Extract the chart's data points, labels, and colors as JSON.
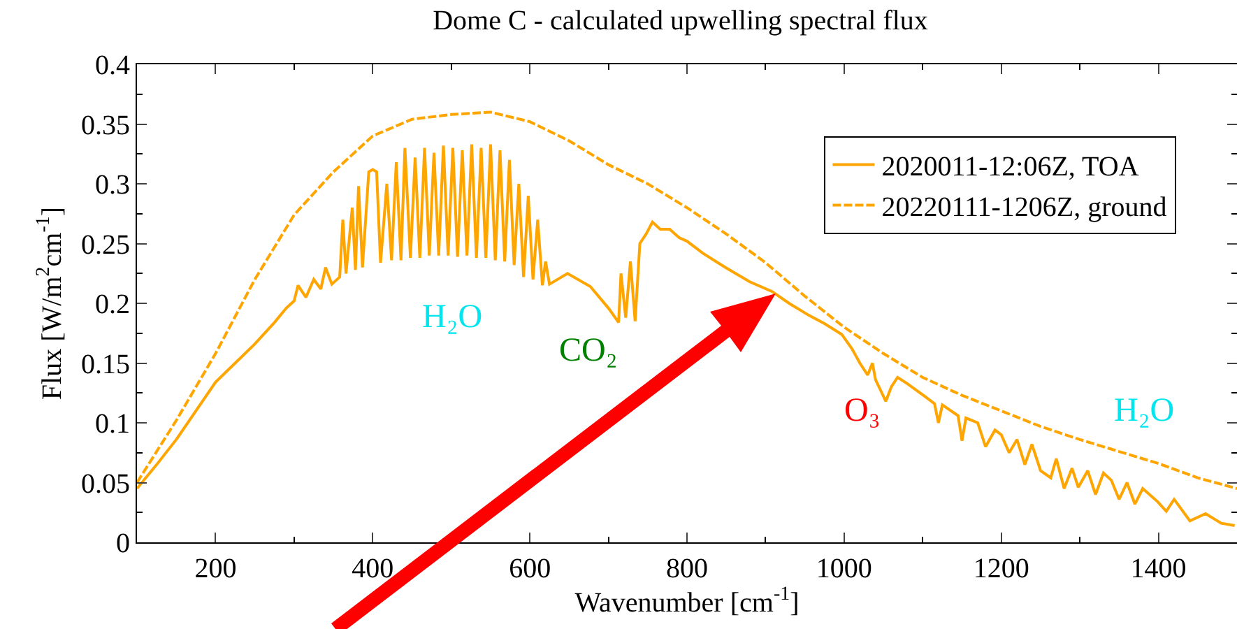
{
  "chart_data": {
    "type": "line",
    "title": "Dome C - calculated upwelling spectral flux",
    "xlabel": "Wavenumber [cm$^{-1}$]",
    "ylabel": "Flux [W/m$^{2}$cm$^{-1}$]",
    "xlim": [
      100,
      1500
    ],
    "xticks": [
      200,
      400,
      600,
      800,
      1000,
      1200,
      1400
    ],
    "ylim": [
      0,
      0.4
    ],
    "yticks": [
      0,
      0.05,
      0.1,
      0.15,
      0.2,
      0.25,
      0.3,
      0.35,
      0.4
    ],
    "grid": false,
    "legend": "top right",
    "marker": "none",
    "series": [
      {
        "name": "2020011-12:06Z, TOA",
        "color": "#ffa500",
        "line_style": "solid",
        "x": [
          100,
          125,
          150,
          175,
          200,
          225,
          250,
          275,
          290,
          300,
          305,
          315,
          325,
          334,
          340,
          348,
          358,
          362,
          366,
          374,
          378,
          382,
          387,
          395,
          400,
          405,
          410,
          418,
          424,
          430,
          436,
          441,
          448,
          454,
          460,
          466,
          472,
          478,
          484,
          490,
          496,
          502,
          508,
          514,
          520,
          526,
          532,
          538,
          544,
          550,
          556,
          562,
          568,
          574,
          580,
          586,
          592,
          598,
          604,
          610,
          616,
          620,
          625,
          648,
          677,
          700,
          713,
          716,
          722,
          728,
          734,
          740,
          748,
          756,
          766,
          778,
          790,
          800,
          820,
          849,
          880,
          908,
          930,
          955,
          975,
          997,
          1010,
          1020,
          1030,
          1036,
          1040,
          1048,
          1053,
          1060,
          1068,
          1080,
          1103,
          1115,
          1120,
          1125,
          1145,
          1150,
          1155,
          1170,
          1180,
          1192,
          1200,
          1210,
          1220,
          1230,
          1239,
          1250,
          1263,
          1270,
          1280,
          1290,
          1298,
          1310,
          1320,
          1330,
          1340,
          1350,
          1360,
          1370,
          1380,
          1399,
          1410,
          1420,
          1440,
          1460,
          1480,
          1497
        ],
        "values": [
          0.045,
          0.065,
          0.086,
          0.11,
          0.134,
          0.15,
          0.166,
          0.184,
          0.196,
          0.202,
          0.215,
          0.205,
          0.22,
          0.212,
          0.23,
          0.216,
          0.222,
          0.27,
          0.225,
          0.28,
          0.228,
          0.298,
          0.23,
          0.31,
          0.312,
          0.31,
          0.234,
          0.3,
          0.236,
          0.318,
          0.236,
          0.33,
          0.238,
          0.322,
          0.238,
          0.33,
          0.24,
          0.326,
          0.24,
          0.332,
          0.24,
          0.33,
          0.239,
          0.328,
          0.24,
          0.333,
          0.238,
          0.33,
          0.238,
          0.333,
          0.236,
          0.328,
          0.235,
          0.32,
          0.232,
          0.3,
          0.222,
          0.29,
          0.22,
          0.27,
          0.215,
          0.235,
          0.216,
          0.225,
          0.214,
          0.196,
          0.184,
          0.225,
          0.188,
          0.235,
          0.185,
          0.25,
          0.258,
          0.268,
          0.262,
          0.262,
          0.255,
          0.252,
          0.242,
          0.23,
          0.218,
          0.21,
          0.2,
          0.19,
          0.183,
          0.174,
          0.162,
          0.15,
          0.14,
          0.15,
          0.136,
          0.125,
          0.118,
          0.13,
          0.138,
          0.133,
          0.122,
          0.116,
          0.1,
          0.115,
          0.106,
          0.085,
          0.104,
          0.1,
          0.08,
          0.094,
          0.09,
          0.075,
          0.086,
          0.065,
          0.082,
          0.06,
          0.054,
          0.07,
          0.045,
          0.062,
          0.046,
          0.06,
          0.04,
          0.058,
          0.052,
          0.036,
          0.05,
          0.032,
          0.045,
          0.034,
          0.026,
          0.036,
          0.018,
          0.024,
          0.016,
          0.014
        ]
      },
      {
        "name": "20220111-1206Z, ground",
        "color": "#ffa500",
        "line_style": "dashed",
        "x": [
          100,
          150,
          200,
          250,
          300,
          350,
          400,
          450,
          500,
          550,
          600,
          650,
          700,
          750,
          800,
          850,
          900,
          950,
          1000,
          1050,
          1100,
          1150,
          1200,
          1250,
          1300,
          1350,
          1400,
          1450,
          1500
        ],
        "values": [
          0.05,
          0.102,
          0.158,
          0.22,
          0.274,
          0.31,
          0.34,
          0.354,
          0.358,
          0.36,
          0.352,
          0.336,
          0.316,
          0.3,
          0.28,
          0.258,
          0.234,
          0.206,
          0.18,
          0.158,
          0.138,
          0.123,
          0.11,
          0.097,
          0.086,
          0.076,
          0.066,
          0.054,
          0.045
        ]
      }
    ],
    "annotations": [
      "H₂O",
      "CO₂",
      "O₃",
      "H₂O"
    ]
  }
}
